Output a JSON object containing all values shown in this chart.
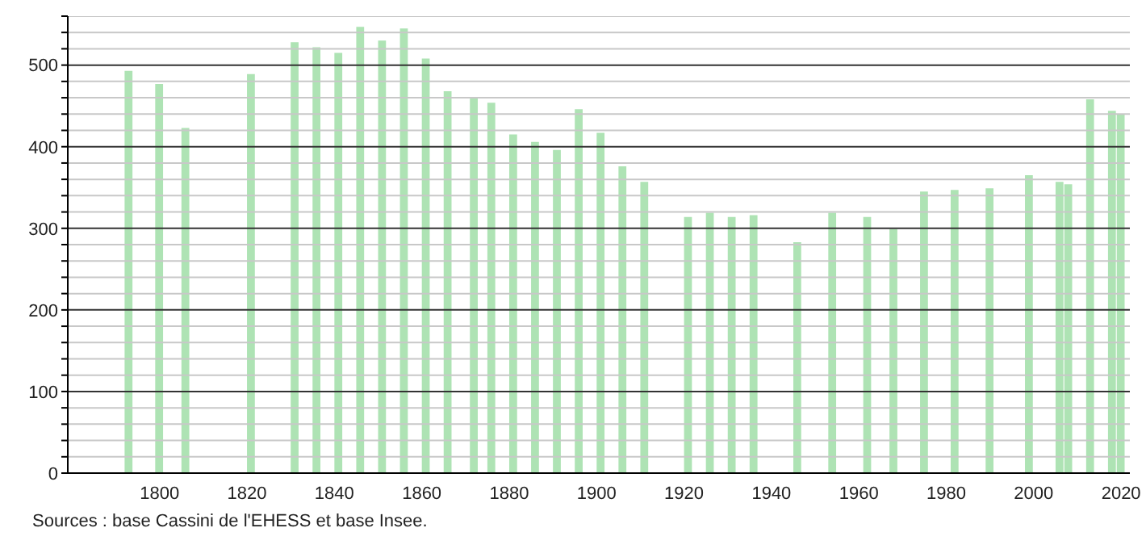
{
  "chart_data": {
    "type": "bar",
    "x": [
      1793,
      1800,
      1806,
      1821,
      1831,
      1836,
      1841,
      1846,
      1851,
      1856,
      1861,
      1866,
      1872,
      1876,
      1881,
      1886,
      1891,
      1896,
      1901,
      1906,
      1911,
      1921,
      1926,
      1931,
      1936,
      1946,
      1954,
      1962,
      1968,
      1975,
      1982,
      1990,
      1999,
      2006,
      2008,
      2013,
      2018,
      2020
    ],
    "values": [
      493,
      477,
      423,
      489,
      528,
      522,
      515,
      547,
      530,
      545,
      508,
      468,
      461,
      454,
      415,
      406,
      396,
      446,
      417,
      376,
      357,
      314,
      319,
      314,
      316,
      283,
      319,
      314,
      299,
      345,
      347,
      349,
      365,
      357,
      354,
      458,
      444,
      440
    ],
    "color": "#aee3b4",
    "xlim": [
      1779,
      2022
    ],
    "xticks": [
      1800,
      1820,
      1840,
      1860,
      1880,
      1900,
      1920,
      1940,
      1960,
      1980,
      2000,
      2020
    ],
    "ylim": [
      0,
      560
    ],
    "yticks": [
      0,
      {
        "value": 20,
        "label": null
      },
      {
        "value": 40,
        "label": null
      },
      {
        "value": 60,
        "label": null
      },
      {
        "value": 80,
        "label": null
      },
      100,
      {
        "value": 120,
        "label": null
      },
      {
        "value": 140,
        "label": null
      },
      {
        "value": 160,
        "label": null
      },
      {
        "value": 180,
        "label": null
      },
      200,
      {
        "value": 220,
        "label": null
      },
      {
        "value": 240,
        "label": null
      },
      {
        "value": 260,
        "label": null
      },
      {
        "value": 280,
        "label": null
      },
      300,
      {
        "value": 320,
        "label": null
      },
      {
        "value": 340,
        "label": null
      },
      {
        "value": 360,
        "label": null
      },
      {
        "value": 380,
        "label": null
      },
      400,
      {
        "value": 420,
        "label": null
      },
      {
        "value": 440,
        "label": null
      },
      {
        "value": 460,
        "label": null
      },
      {
        "value": 480,
        "label": null
      },
      500,
      {
        "value": 520,
        "label": null
      },
      {
        "value": 540,
        "label": null
      },
      {
        "value": 560,
        "label": null
      }
    ],
    "grid": "y",
    "annotations": [
      "Sources : base Cassini de l'EHESS et base Insee."
    ]
  }
}
